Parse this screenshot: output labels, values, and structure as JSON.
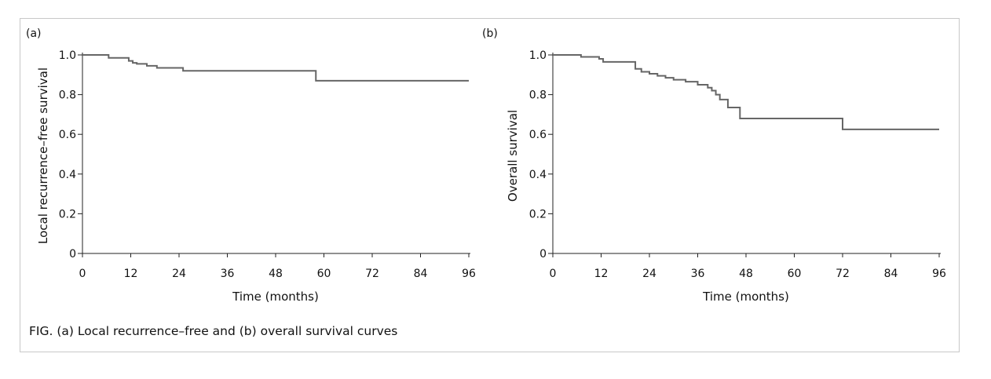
{
  "caption": "FIG. (a) Local recurrence–free and (b) overall survival curves",
  "chart_data": [
    {
      "type": "line",
      "panel_label": "(a)",
      "xlabel": "Time (months)",
      "ylabel": "Local recurrence–free  survival",
      "xlim": [
        0,
        96
      ],
      "ylim": [
        0,
        1
      ],
      "xticks": [
        "0",
        "12",
        "24",
        "36",
        "48",
        "60",
        "72",
        "84",
        "96"
      ],
      "yticks": [
        "0",
        "0.2",
        "0.4",
        "0.6",
        "0.8",
        "1.0"
      ],
      "series": [
        {
          "step": true,
          "x": [
            0,
            6.5,
            11.5,
            12.5,
            13.5,
            16,
            18.5,
            25,
            58,
            96
          ],
          "y": [
            1.0,
            0.985,
            0.97,
            0.96,
            0.955,
            0.945,
            0.935,
            0.92,
            0.87,
            0.87
          ]
        }
      ],
      "color": "#666666"
    },
    {
      "type": "line",
      "panel_label": "(b)",
      "xlabel": "Time (months)",
      "ylabel": "Overall survival",
      "xlim": [
        0,
        96
      ],
      "ylim": [
        0,
        1
      ],
      "xticks": [
        "0",
        "12",
        "24",
        "36",
        "48",
        "60",
        "72",
        "84",
        "96"
      ],
      "yticks": [
        "0",
        "0.2",
        "0.4",
        "0.6",
        "0.8",
        "1.0"
      ],
      "series": [
        {
          "step": true,
          "x": [
            0,
            7,
            11.5,
            12.5,
            20.5,
            22,
            24,
            26,
            28,
            30,
            33,
            36,
            38.5,
            39.5,
            40.5,
            41.5,
            43.5,
            46.5,
            72,
            96
          ],
          "y": [
            1.0,
            0.99,
            0.98,
            0.965,
            0.93,
            0.915,
            0.905,
            0.895,
            0.885,
            0.875,
            0.865,
            0.85,
            0.835,
            0.82,
            0.8,
            0.775,
            0.735,
            0.68,
            0.625,
            0.625
          ]
        }
      ],
      "color": "#666666"
    }
  ]
}
